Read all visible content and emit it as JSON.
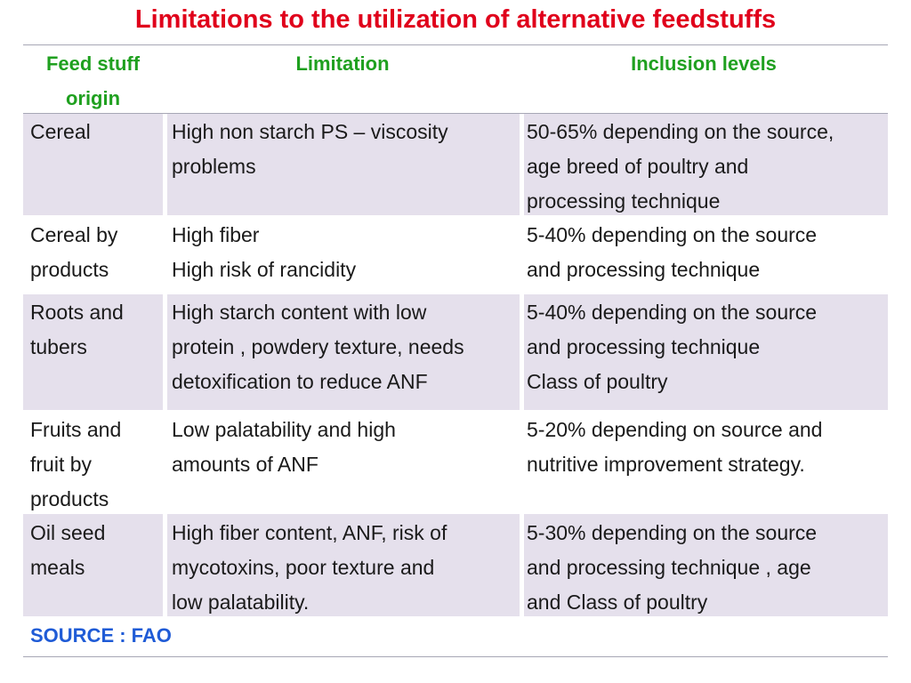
{
  "title": "Limitations to the utilization of alternative feedstuffs",
  "headers": {
    "col1_line1": "Feed stuff",
    "col1_line2": "origin",
    "col2": "Limitation",
    "col3": "Inclusion levels"
  },
  "rows": [
    {
      "origin": [
        "Cereal"
      ],
      "limitation": [
        "High non starch PS – viscosity",
        "problems"
      ],
      "inclusion": [
        "50-65% depending on the source,",
        "age breed of poultry and",
        "processing technique"
      ]
    },
    {
      "origin": [
        "Cereal by",
        "products"
      ],
      "limitation": [
        "High fiber",
        "High risk of rancidity"
      ],
      "inclusion": [
        "5-40% depending on the source",
        "and processing technique"
      ]
    },
    {
      "origin": [
        "Roots and",
        "tubers"
      ],
      "limitation": [
        "High starch content with low",
        "protein , powdery texture, needs",
        "detoxification to reduce ANF"
      ],
      "inclusion": [
        "5-40% depending on the source",
        "and processing technique",
        "Class of poultry"
      ]
    },
    {
      "origin": [
        "Fruits and",
        "fruit by",
        "products"
      ],
      "limitation": [
        "Low palatability and high",
        "amounts of ANF"
      ],
      "inclusion": [
        "5-20% depending on source and",
        "nutritive improvement strategy."
      ]
    },
    {
      "origin": [
        "Oil seed",
        "meals"
      ],
      "limitation": [
        "High fiber content, ANF, risk of",
        "mycotoxins, poor texture and",
        "low palatability."
      ],
      "inclusion": [
        "5-30% depending on the source",
        "and processing technique , age",
        "and Class of poultry"
      ]
    }
  ],
  "source": "SOURCE : FAO",
  "colors": {
    "title": "#e0001b",
    "header": "#1fa01f",
    "source": "#1f5bd6",
    "row_shade": "#e5e0ec"
  }
}
